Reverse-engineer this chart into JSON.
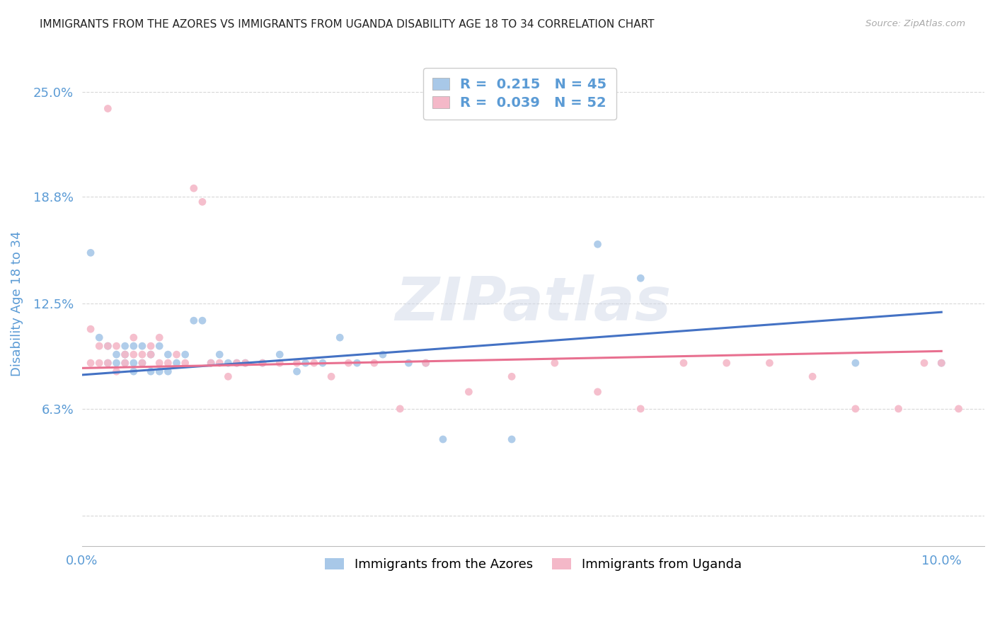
{
  "title": "IMMIGRANTS FROM THE AZORES VS IMMIGRANTS FROM UGANDA DISABILITY AGE 18 TO 34 CORRELATION CHART",
  "source": "Source: ZipAtlas.com",
  "ylabel": "Disability Age 18 to 34",
  "xlim": [
    0.0,
    0.105
  ],
  "ylim": [
    -0.018,
    0.268
  ],
  "yticks": [
    0.0,
    0.063,
    0.125,
    0.188,
    0.25
  ],
  "ytick_labels": [
    "",
    "6.3%",
    "12.5%",
    "18.8%",
    "25.0%"
  ],
  "xticks": [
    0.0,
    0.1
  ],
  "xtick_labels": [
    "0.0%",
    "10.0%"
  ],
  "azores_color": "#a8c8e8",
  "azores_trend_color": "#4472c4",
  "azores_R": "0.215",
  "azores_N": "45",
  "uganda_color": "#f4b8c8",
  "uganda_trend_color": "#e87090",
  "uganda_R": "0.039",
  "uganda_N": "52",
  "azores_x": [
    0.001,
    0.002,
    0.003,
    0.003,
    0.004,
    0.004,
    0.005,
    0.005,
    0.005,
    0.006,
    0.006,
    0.006,
    0.007,
    0.007,
    0.008,
    0.008,
    0.009,
    0.009,
    0.01,
    0.01,
    0.011,
    0.012,
    0.013,
    0.014,
    0.015,
    0.016,
    0.017,
    0.018,
    0.019,
    0.021,
    0.023,
    0.025,
    0.026,
    0.028,
    0.03,
    0.032,
    0.035,
    0.038,
    0.04,
    0.042,
    0.05,
    0.06,
    0.065,
    0.09,
    0.1
  ],
  "azores_y": [
    0.155,
    0.105,
    0.09,
    0.1,
    0.09,
    0.095,
    0.09,
    0.095,
    0.1,
    0.085,
    0.09,
    0.1,
    0.09,
    0.1,
    0.085,
    0.095,
    0.085,
    0.1,
    0.085,
    0.095,
    0.09,
    0.095,
    0.115,
    0.115,
    0.09,
    0.095,
    0.09,
    0.09,
    0.09,
    0.09,
    0.095,
    0.085,
    0.09,
    0.09,
    0.105,
    0.09,
    0.095,
    0.09,
    0.09,
    0.045,
    0.045,
    0.16,
    0.14,
    0.09,
    0.09
  ],
  "azores_trend": [
    0.083,
    0.12
  ],
  "uganda_x": [
    0.001,
    0.001,
    0.002,
    0.002,
    0.003,
    0.003,
    0.004,
    0.004,
    0.005,
    0.005,
    0.006,
    0.006,
    0.007,
    0.007,
    0.008,
    0.008,
    0.009,
    0.009,
    0.01,
    0.011,
    0.012,
    0.013,
    0.014,
    0.015,
    0.016,
    0.017,
    0.018,
    0.019,
    0.021,
    0.023,
    0.025,
    0.027,
    0.029,
    0.031,
    0.034,
    0.037,
    0.04,
    0.045,
    0.05,
    0.055,
    0.06,
    0.065,
    0.07,
    0.075,
    0.08,
    0.085,
    0.09,
    0.095,
    0.098,
    0.1,
    0.102,
    0.003
  ],
  "uganda_y": [
    0.09,
    0.11,
    0.1,
    0.09,
    0.09,
    0.1,
    0.1,
    0.085,
    0.095,
    0.09,
    0.105,
    0.095,
    0.095,
    0.09,
    0.095,
    0.1,
    0.105,
    0.09,
    0.09,
    0.095,
    0.09,
    0.193,
    0.185,
    0.09,
    0.09,
    0.082,
    0.09,
    0.09,
    0.09,
    0.09,
    0.09,
    0.09,
    0.082,
    0.09,
    0.09,
    0.063,
    0.09,
    0.073,
    0.082,
    0.09,
    0.073,
    0.063,
    0.09,
    0.09,
    0.09,
    0.082,
    0.063,
    0.063,
    0.09,
    0.09,
    0.063,
    0.24
  ],
  "uganda_trend": [
    0.087,
    0.097
  ],
  "background_color": "#ffffff",
  "grid_color": "#d8d8d8",
  "title_fontsize": 11,
  "tick_color": "#5b9bd5",
  "ylabel_color": "#5b9bd5",
  "legend_R_color": "#5b9bd5",
  "watermark": "ZIPatlas"
}
